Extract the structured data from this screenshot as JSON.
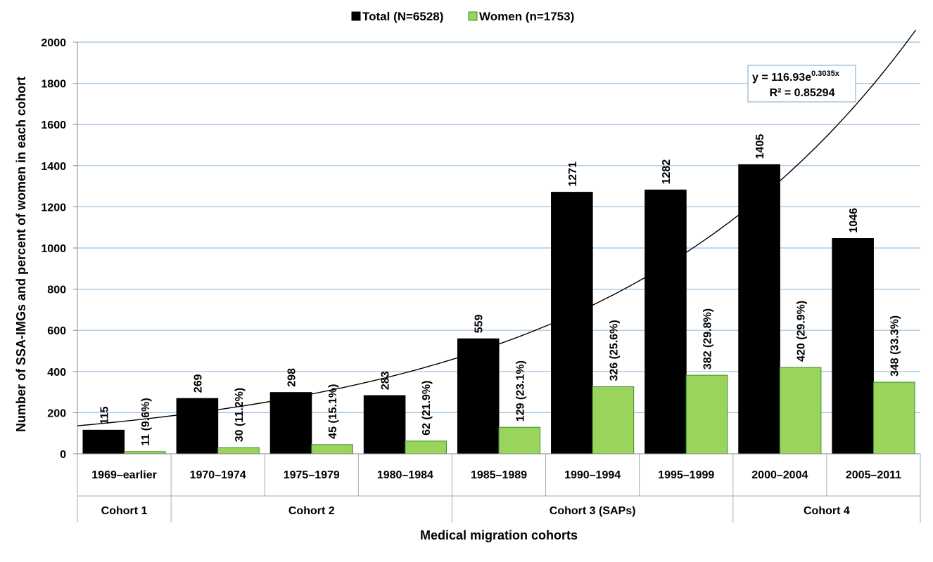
{
  "chart_data": {
    "type": "bar",
    "categories": [
      "1969–earlier",
      "1970–1974",
      "1975–1979",
      "1980–1984",
      "1985–1989",
      "1990–1994",
      "1995–1999",
      "2000–2004",
      "2005–2011"
    ],
    "groups": [
      {
        "label": "Cohort 1",
        "categories": [
          "1969–earlier"
        ]
      },
      {
        "label": "Cohort 2",
        "categories": [
          "1970–1974",
          "1975–1979",
          "1980–1984"
        ]
      },
      {
        "label": "Cohort 3 (SAPs)",
        "categories": [
          "1985–1989",
          "1990–1994",
          "1995–1999"
        ]
      },
      {
        "label": "Cohort 4",
        "categories": [
          "2000–2004",
          "2005–2011"
        ]
      }
    ],
    "series": [
      {
        "name": "Total (N=6528)",
        "color": "#000000",
        "values": [
          115,
          269,
          298,
          283,
          559,
          1271,
          1282,
          1405,
          1046
        ],
        "labels": [
          "115",
          "269",
          "298",
          "283",
          "559",
          "1271",
          "1282",
          "1405",
          "1046"
        ]
      },
      {
        "name": "Women (n=1753)",
        "color": "#99d45c",
        "values": [
          11,
          30,
          45,
          62,
          129,
          326,
          382,
          420,
          348
        ],
        "labels": [
          "11 (9.6%)",
          "30 (11.2%)",
          "45 (15.1%)",
          "62 (21.9%)",
          "129 (23.1%)",
          "326 (25.6%)",
          "382 (29.8%)",
          "420 (29.9%)",
          "348 (33.3%)"
        ]
      }
    ],
    "trendline": {
      "type": "exponential",
      "a": 116.93,
      "b": 0.3035,
      "equation_base": "y = 116.93e",
      "equation_exponent": "0.3035x",
      "r_squared_text": "R² = 0.85294"
    },
    "xlabel": "Medical migration cohorts",
    "ylabel": "Number of SSA-IMGs and percent of women in each cohort",
    "ylim": [
      0,
      2000
    ],
    "yticks": [
      0,
      200,
      400,
      600,
      800,
      1000,
      1200,
      1400,
      1600,
      1800,
      2000
    ],
    "grid": true,
    "legend_position": "top"
  }
}
